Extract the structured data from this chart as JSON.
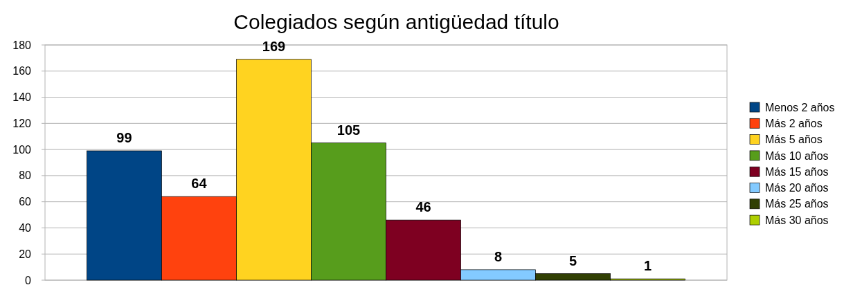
{
  "chart_data": {
    "type": "bar",
    "title": "Colegiados según antigüedad título",
    "categories": [
      null
    ],
    "series": [
      {
        "name": "Menos 2 años",
        "color": "#004586",
        "values": [
          99
        ]
      },
      {
        "name": "Más 2 años",
        "color": "#ff420e",
        "values": [
          64
        ]
      },
      {
        "name": "Más 5 años",
        "color": "#ffd320",
        "values": [
          169
        ]
      },
      {
        "name": "Más 10 años",
        "color": "#579d1c",
        "values": [
          105
        ]
      },
      {
        "name": "Más 15 años",
        "color": "#7e0021",
        "values": [
          46
        ]
      },
      {
        "name": "Más 20 años",
        "color": "#83caff",
        "values": [
          8
        ]
      },
      {
        "name": "Más 25 años",
        "color": "#314004",
        "values": [
          5
        ]
      },
      {
        "name": "Más 30 años",
        "color": "#aecf00",
        "values": [
          1
        ]
      }
    ],
    "ylim": [
      0,
      180
    ],
    "yticks": [
      0,
      20,
      40,
      60,
      80,
      100,
      120,
      140,
      160,
      180
    ],
    "grid": "y",
    "legend": "right",
    "data_labels": true
  }
}
